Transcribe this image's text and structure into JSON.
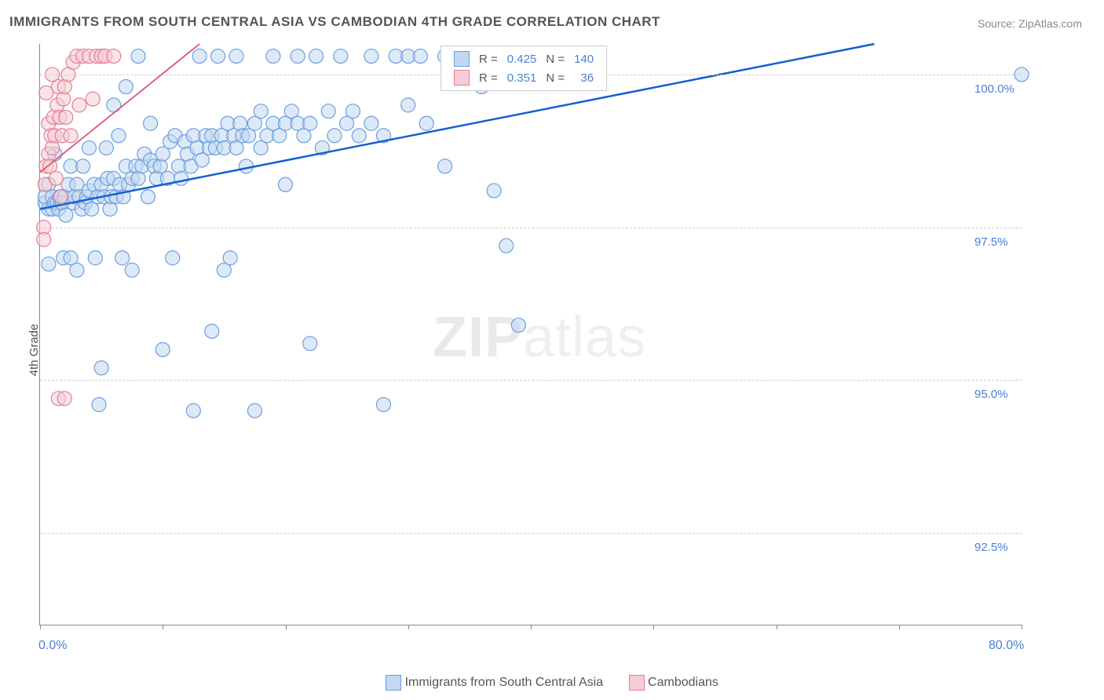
{
  "title": "IMMIGRANTS FROM SOUTH CENTRAL ASIA VS CAMBODIAN 4TH GRADE CORRELATION CHART",
  "source": "Source: ZipAtlas.com",
  "ylabel": "4th Grade",
  "watermark_zip": "ZIP",
  "watermark_atlas": "atlas",
  "chart": {
    "type": "scatter",
    "xlim": [
      0,
      80
    ],
    "ylim": [
      91,
      100.5
    ],
    "x_ticks_minor": [
      0,
      10,
      20,
      30,
      40,
      50,
      60,
      70,
      80
    ],
    "x_tick_labels": [
      {
        "v": 0,
        "label": "0.0%"
      },
      {
        "v": 80,
        "label": "80.0%"
      }
    ],
    "y_grid": [
      92.5,
      95.0,
      97.5,
      100.0
    ],
    "y_tick_labels": [
      {
        "v": 92.5,
        "label": "92.5%"
      },
      {
        "v": 95.0,
        "label": "95.0%"
      },
      {
        "v": 97.5,
        "label": "97.5%"
      },
      {
        "v": 100.0,
        "label": "100.0%"
      }
    ],
    "grid_color": "#d0d0d0",
    "background": "#ffffff",
    "marker_radius": 9,
    "marker_stroke_width": 1.2,
    "marker_opacity": 0.55,
    "series": [
      {
        "name": "Immigrants from South Central Asia",
        "fill": "#c3d7f0",
        "stroke": "#6b9fe0",
        "line_color": "#1560d0",
        "line_width": 2.5,
        "trend": {
          "x1": 0,
          "y1": 97.8,
          "x2": 68,
          "y2": 100.5
        },
        "R": "0.425",
        "N": "140",
        "points": [
          [
            0.4,
            97.9
          ],
          [
            0.4,
            98.0
          ],
          [
            0.7,
            97.8
          ],
          [
            0.7,
            98.2
          ],
          [
            0.7,
            96.9
          ],
          [
            1.0,
            98.0
          ],
          [
            1.0,
            97.8
          ],
          [
            1.2,
            97.9
          ],
          [
            1.2,
            98.7
          ],
          [
            1.4,
            97.9
          ],
          [
            1.5,
            97.8
          ],
          [
            1.6,
            98.0
          ],
          [
            1.8,
            97.9
          ],
          [
            1.9,
            97.0
          ],
          [
            2.0,
            98.0
          ],
          [
            2.1,
            97.7
          ],
          [
            2.3,
            98.2
          ],
          [
            2.5,
            97.0
          ],
          [
            2.5,
            98.5
          ],
          [
            2.7,
            97.9
          ],
          [
            2.8,
            98.0
          ],
          [
            3.0,
            98.2
          ],
          [
            3.0,
            96.8
          ],
          [
            3.2,
            98.0
          ],
          [
            3.4,
            97.8
          ],
          [
            3.5,
            98.5
          ],
          [
            3.7,
            97.9
          ],
          [
            3.8,
            98.0
          ],
          [
            4.0,
            98.1
          ],
          [
            4.0,
            98.8
          ],
          [
            4.2,
            97.8
          ],
          [
            4.4,
            98.2
          ],
          [
            4.5,
            97.0
          ],
          [
            4.7,
            98.0
          ],
          [
            4.8,
            94.6
          ],
          [
            5.0,
            98.2
          ],
          [
            5.0,
            95.2
          ],
          [
            5.2,
            98.0
          ],
          [
            5.4,
            98.8
          ],
          [
            5.5,
            98.3
          ],
          [
            5.7,
            97.8
          ],
          [
            5.8,
            98.0
          ],
          [
            6.0,
            98.3
          ],
          [
            6.0,
            99.5
          ],
          [
            6.2,
            98.0
          ],
          [
            6.4,
            99.0
          ],
          [
            6.5,
            98.2
          ],
          [
            6.7,
            97.0
          ],
          [
            6.8,
            98.0
          ],
          [
            7.0,
            98.5
          ],
          [
            7.0,
            99.8
          ],
          [
            7.2,
            98.2
          ],
          [
            7.5,
            98.3
          ],
          [
            7.5,
            96.8
          ],
          [
            7.8,
            98.5
          ],
          [
            8.0,
            98.3
          ],
          [
            8.0,
            100.3
          ],
          [
            8.3,
            98.5
          ],
          [
            8.5,
            98.7
          ],
          [
            8.8,
            98.0
          ],
          [
            9.0,
            98.6
          ],
          [
            9.0,
            99.2
          ],
          [
            9.3,
            98.5
          ],
          [
            9.5,
            98.3
          ],
          [
            9.8,
            98.5
          ],
          [
            10.0,
            98.7
          ],
          [
            10.0,
            95.5
          ],
          [
            10.4,
            98.3
          ],
          [
            10.6,
            98.9
          ],
          [
            10.8,
            97.0
          ],
          [
            11.0,
            99.0
          ],
          [
            11.3,
            98.5
          ],
          [
            11.5,
            98.3
          ],
          [
            11.8,
            98.9
          ],
          [
            12.0,
            98.7
          ],
          [
            12.3,
            98.5
          ],
          [
            12.5,
            99.0
          ],
          [
            12.5,
            94.5
          ],
          [
            12.8,
            98.8
          ],
          [
            13.0,
            100.3
          ],
          [
            13.2,
            98.6
          ],
          [
            13.5,
            99.0
          ],
          [
            13.8,
            98.8
          ],
          [
            14.0,
            99.0
          ],
          [
            14.0,
            95.8
          ],
          [
            14.3,
            98.8
          ],
          [
            14.5,
            100.3
          ],
          [
            14.8,
            99.0
          ],
          [
            15.0,
            98.8
          ],
          [
            15.0,
            96.8
          ],
          [
            15.3,
            99.2
          ],
          [
            15.5,
            97.0
          ],
          [
            15.8,
            99.0
          ],
          [
            16.0,
            98.8
          ],
          [
            16.0,
            100.3
          ],
          [
            16.3,
            99.2
          ],
          [
            16.5,
            99.0
          ],
          [
            16.8,
            98.5
          ],
          [
            17.0,
            99.0
          ],
          [
            17.5,
            99.2
          ],
          [
            17.5,
            94.5
          ],
          [
            18.0,
            98.8
          ],
          [
            18.0,
            99.4
          ],
          [
            18.5,
            99.0
          ],
          [
            19.0,
            99.2
          ],
          [
            19.0,
            100.3
          ],
          [
            19.5,
            99.0
          ],
          [
            20.0,
            99.2
          ],
          [
            20.0,
            98.2
          ],
          [
            20.5,
            99.4
          ],
          [
            21.0,
            100.3
          ],
          [
            21.0,
            99.2
          ],
          [
            21.5,
            99.0
          ],
          [
            22.0,
            95.6
          ],
          [
            22.0,
            99.2
          ],
          [
            22.5,
            100.3
          ],
          [
            23.0,
            98.8
          ],
          [
            23.5,
            99.4
          ],
          [
            24.0,
            99.0
          ],
          [
            24.5,
            100.3
          ],
          [
            25.0,
            99.2
          ],
          [
            25.5,
            99.4
          ],
          [
            26.0,
            99.0
          ],
          [
            27.0,
            100.3
          ],
          [
            27.0,
            99.2
          ],
          [
            28.0,
            94.6
          ],
          [
            28.0,
            99.0
          ],
          [
            29.0,
            100.3
          ],
          [
            30.0,
            99.5
          ],
          [
            30.0,
            100.3
          ],
          [
            31.0,
            100.3
          ],
          [
            31.5,
            99.2
          ],
          [
            33.0,
            100.3
          ],
          [
            33.0,
            98.5
          ],
          [
            36.0,
            99.8
          ],
          [
            37.0,
            98.1
          ],
          [
            38.0,
            97.2
          ],
          [
            38.0,
            100.3
          ],
          [
            39.0,
            95.9
          ],
          [
            80.0,
            100.0
          ]
        ]
      },
      {
        "name": "Cambodians",
        "fill": "#f5cdd4",
        "stroke": "#e27f96",
        "line_color": "#e05578",
        "line_width": 1.8,
        "trend": {
          "x1": 0,
          "y1": 98.4,
          "x2": 13,
          "y2": 100.5
        },
        "R": "0.351",
        "N": "36",
        "points": [
          [
            0.3,
            97.5
          ],
          [
            0.3,
            97.3
          ],
          [
            0.4,
            98.2
          ],
          [
            0.5,
            98.5
          ],
          [
            0.5,
            99.7
          ],
          [
            0.7,
            98.7
          ],
          [
            0.7,
            99.2
          ],
          [
            0.8,
            98.5
          ],
          [
            0.9,
            99.0
          ],
          [
            1.0,
            100.0
          ],
          [
            1.0,
            98.8
          ],
          [
            1.1,
            99.3
          ],
          [
            1.2,
            99.0
          ],
          [
            1.3,
            98.3
          ],
          [
            1.4,
            99.5
          ],
          [
            1.5,
            99.8
          ],
          [
            1.5,
            94.7
          ],
          [
            1.6,
            99.3
          ],
          [
            1.7,
            98.0
          ],
          [
            1.8,
            99.0
          ],
          [
            1.9,
            99.6
          ],
          [
            2.0,
            94.7
          ],
          [
            2.0,
            99.8
          ],
          [
            2.1,
            99.3
          ],
          [
            2.3,
            100.0
          ],
          [
            2.5,
            99.0
          ],
          [
            2.7,
            100.2
          ],
          [
            3.0,
            100.3
          ],
          [
            3.2,
            99.5
          ],
          [
            3.5,
            100.3
          ],
          [
            4.0,
            100.3
          ],
          [
            4.3,
            99.6
          ],
          [
            4.6,
            100.3
          ],
          [
            5.0,
            100.3
          ],
          [
            5.3,
            100.3
          ],
          [
            6.0,
            100.3
          ]
        ]
      }
    ]
  },
  "bottom_legend": {
    "series1_label": "Immigrants from South Central Asia",
    "series2_label": "Cambodians"
  },
  "r_legend": {
    "r_label": "R =",
    "n_label": "N ="
  }
}
